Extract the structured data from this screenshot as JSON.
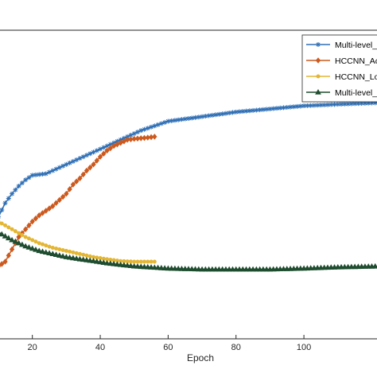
{
  "chart_data": {
    "type": "line",
    "xlabel": "Epoch",
    "ylabel": "",
    "xlim": [
      10,
      122
    ],
    "ylim": [
      0,
      1
    ],
    "xticks": [
      20,
      40,
      60,
      80,
      100
    ],
    "grid": false,
    "legend_position": "top-right",
    "series": [
      {
        "name": "Multi-level_",
        "color": "#2f6fb5",
        "marker": "star",
        "x": [
          10,
          12,
          14,
          16,
          18,
          20,
          24,
          28,
          32,
          36,
          40,
          44,
          48,
          52,
          56,
          60,
          70,
          80,
          90,
          100,
          110,
          122
        ],
        "y": [
          0.395,
          0.44,
          0.47,
          0.495,
          0.515,
          0.53,
          0.535,
          0.555,
          0.575,
          0.595,
          0.615,
          0.635,
          0.655,
          0.675,
          0.69,
          0.705,
          0.72,
          0.735,
          0.745,
          0.755,
          0.76,
          0.765
        ]
      },
      {
        "name": "HCCNN_Ac",
        "color": "#cc5a1f",
        "marker": "diamond",
        "x": [
          10,
          12,
          14,
          16,
          18,
          20,
          22,
          24,
          26,
          28,
          30,
          32,
          34,
          36,
          38,
          40,
          42,
          44,
          46,
          48,
          50,
          52,
          54,
          56
        ],
        "y": [
          0.235,
          0.25,
          0.29,
          0.33,
          0.355,
          0.38,
          0.4,
          0.415,
          0.43,
          0.45,
          0.47,
          0.5,
          0.52,
          0.545,
          0.565,
          0.59,
          0.61,
          0.625,
          0.635,
          0.645,
          0.648,
          0.65,
          0.652,
          0.655
        ]
      },
      {
        "name": "HCCNN_Lo",
        "color": "#e3b634",
        "marker": "circle",
        "x": [
          10,
          14,
          18,
          22,
          26,
          30,
          34,
          38,
          42,
          46,
          50,
          54,
          56
        ],
        "y": [
          0.38,
          0.355,
          0.33,
          0.31,
          0.295,
          0.285,
          0.275,
          0.265,
          0.258,
          0.252,
          0.25,
          0.25,
          0.25
        ]
      },
      {
        "name": "Multi-level_",
        "color": "#1f4d2f",
        "marker": "triangle",
        "x": [
          10,
          14,
          18,
          22,
          26,
          30,
          34,
          38,
          42,
          46,
          50,
          60,
          70,
          80,
          90,
          100,
          110,
          122
        ],
        "y": [
          0.345,
          0.32,
          0.3,
          0.285,
          0.275,
          0.265,
          0.258,
          0.252,
          0.245,
          0.24,
          0.235,
          0.228,
          0.225,
          0.225,
          0.225,
          0.228,
          0.232,
          0.235
        ]
      }
    ]
  }
}
